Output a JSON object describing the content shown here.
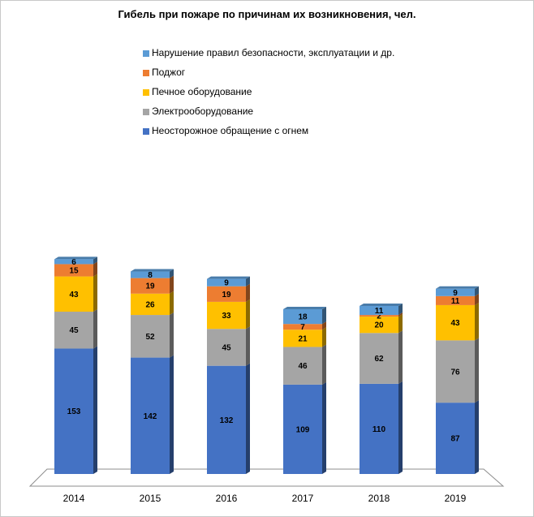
{
  "chart_data": {
    "type": "bar",
    "stacked": true,
    "title": "Гибель при пожаре по причинам их возникновения, чел.",
    "categories": [
      "2014",
      "2015",
      "2016",
      "2017",
      "2018",
      "2019"
    ],
    "series": [
      {
        "name": "Неосторожное обращение с огнем",
        "color": "#4472C4",
        "values": [
          153,
          142,
          132,
          109,
          110,
          87
        ]
      },
      {
        "name": "Электрооборудование",
        "color": "#A5A5A5",
        "values": [
          45,
          52,
          45,
          46,
          62,
          76
        ]
      },
      {
        "name": "Печное оборудование",
        "color": "#FFC000",
        "values": [
          43,
          26,
          33,
          21,
          20,
          43
        ]
      },
      {
        "name": "Поджог",
        "color": "#ED7D31",
        "values": [
          15,
          19,
          19,
          7,
          2,
          11
        ]
      },
      {
        "name": "Нарушение правил безопасности, эксплуатации и др.",
        "color": "#5B9BD5",
        "values": [
          6,
          8,
          9,
          18,
          11,
          9
        ]
      }
    ],
    "legend_position": "top",
    "legend_order": "reverse",
    "grid": false,
    "three_d": true
  }
}
